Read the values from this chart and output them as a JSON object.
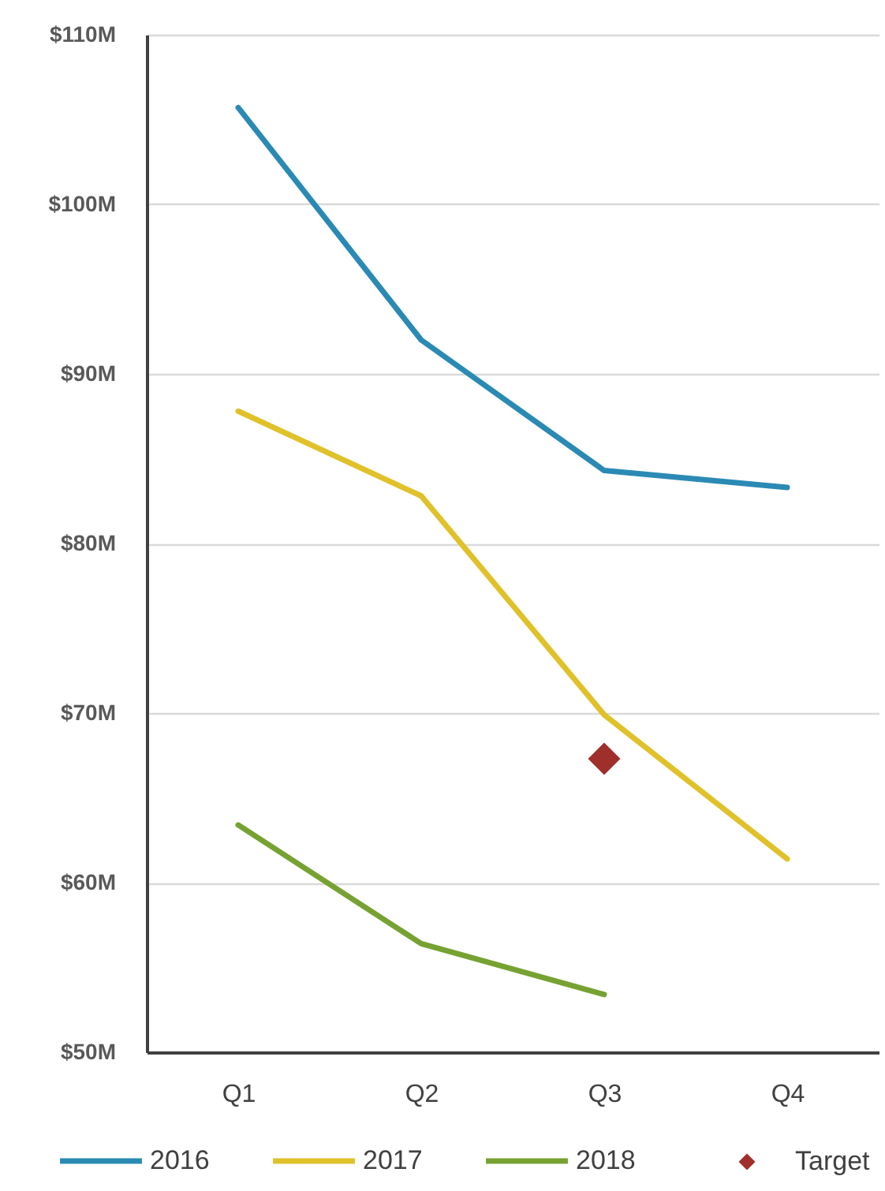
{
  "chart_data": {
    "type": "line",
    "categories": [
      "Q1",
      "Q2",
      "Q3",
      "Q4"
    ],
    "series": [
      {
        "name": "2016",
        "color": "#2a8ab4",
        "values": [
          105.7,
          92.0,
          84.3,
          83.3
        ]
      },
      {
        "name": "2017",
        "color": "#e0c12a",
        "values": [
          87.8,
          82.8,
          69.9,
          61.4
        ]
      },
      {
        "name": "2018",
        "color": "#76a232",
        "values": [
          63.4,
          56.4,
          53.4,
          null
        ]
      },
      {
        "name": "Target",
        "type": "scatter",
        "marker": "diamond",
        "color": "#9e2f2a",
        "values": [
          null,
          null,
          67.3,
          null
        ]
      }
    ],
    "ylim": [
      50,
      110
    ],
    "yticks": [
      {
        "value": 50,
        "label": "$50M"
      },
      {
        "value": 60,
        "label": "$60M"
      },
      {
        "value": 70,
        "label": "$70M"
      },
      {
        "value": 80,
        "label": "$80M"
      },
      {
        "value": 90,
        "label": "$90M"
      },
      {
        "value": 100,
        "label": "$100M"
      },
      {
        "value": 110,
        "label": "$110M"
      }
    ],
    "grid": "y",
    "legend": "bottom",
    "line_style": "solid"
  }
}
